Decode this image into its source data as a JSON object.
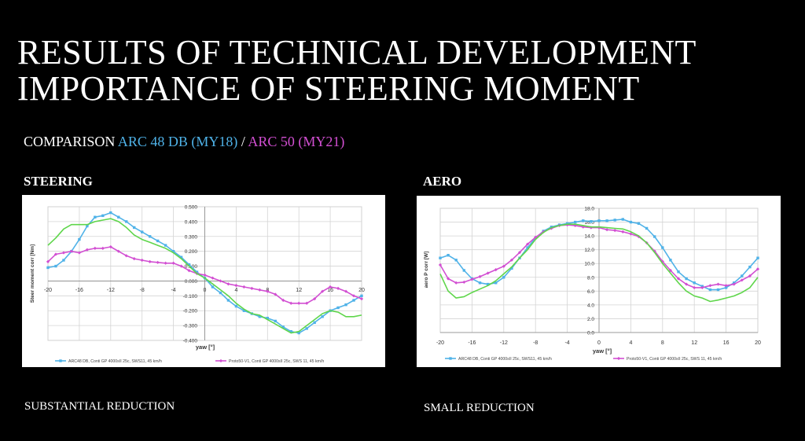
{
  "slide": {
    "title_line1": "RESULTS OF TECHNICAL DEVELOPMENT",
    "title_line2": "IMPORTANCE OF STEERING MOMENT",
    "subtitle": {
      "prefix": "COMPARISON ",
      "part1": "ARC 48 DB (MY18)",
      "sep": " / ",
      "part2": "ARC 50 (MY21)"
    },
    "colors": {
      "arc48": "#4fb2e8",
      "arc50": "#d24fd2",
      "green": "#5fd64b",
      "background": "#000000"
    }
  },
  "left": {
    "heading": "STEERING",
    "caption": "SUBSTANTIAL REDUCTION"
  },
  "right": {
    "heading": "AERO",
    "caption": "SMALL REDUCTION"
  },
  "chart_data": [
    {
      "type": "line",
      "title": "",
      "xlabel": "yaw [°]",
      "ylabel": "Steer moment corr [Nm]",
      "xlim": [
        -20,
        20
      ],
      "ylim": [
        -0.4,
        0.5
      ],
      "xticks": [
        -20,
        -16,
        -12,
        -8,
        -4,
        0,
        4,
        8,
        12,
        16,
        20
      ],
      "yticks": [
        -0.4,
        -0.3,
        -0.2,
        -0.1,
        0.0,
        0.1,
        0.2,
        0.3,
        0.4,
        0.5
      ],
      "ytick_decimals": 3,
      "grid": true,
      "legend_position": "bottom",
      "series": [
        {
          "name": "ARC48 DB, Conti GP 4000sII 25c, SWS11, 45 km/h",
          "color": "#4fb2e8",
          "marker": "square",
          "x": [
            -20,
            -19,
            -18,
            -17,
            -16,
            -15,
            -14,
            -13,
            -12,
            -11,
            -10,
            -9,
            -8,
            -7,
            -6,
            -5,
            -4,
            -3,
            -2,
            -1,
            0,
            1,
            2,
            3,
            4,
            5,
            6,
            7,
            8,
            9,
            10,
            11,
            12,
            13,
            14,
            15,
            16,
            17,
            18,
            19,
            20
          ],
          "y": [
            0.09,
            0.1,
            0.14,
            0.2,
            0.28,
            0.37,
            0.43,
            0.44,
            0.46,
            0.43,
            0.4,
            0.36,
            0.33,
            0.3,
            0.27,
            0.24,
            0.2,
            0.16,
            0.11,
            0.06,
            0.02,
            -0.04,
            -0.08,
            -0.13,
            -0.17,
            -0.2,
            -0.22,
            -0.24,
            -0.25,
            -0.27,
            -0.31,
            -0.34,
            -0.35,
            -0.32,
            -0.28,
            -0.24,
            -0.2,
            -0.18,
            -0.16,
            -0.13,
            -0.1
          ]
        },
        {
          "name": "Proto50-V1, Conti GP 4000sII 25c, SWS 11, 45 km/h",
          "color": "#d24fd2",
          "marker": "diamond",
          "x": [
            -20,
            -19,
            -18,
            -17,
            -16,
            -15,
            -14,
            -13,
            -12,
            -11,
            -10,
            -9,
            -8,
            -7,
            -6,
            -5,
            -4,
            -3,
            -2,
            -1,
            0,
            1,
            2,
            3,
            4,
            5,
            6,
            7,
            8,
            9,
            10,
            11,
            12,
            13,
            14,
            15,
            16,
            17,
            18,
            19,
            20
          ],
          "y": [
            0.13,
            0.18,
            0.19,
            0.2,
            0.19,
            0.21,
            0.22,
            0.22,
            0.23,
            0.2,
            0.17,
            0.15,
            0.14,
            0.13,
            0.125,
            0.12,
            0.12,
            0.1,
            0.07,
            0.05,
            0.04,
            0.02,
            0.0,
            -0.02,
            -0.03,
            -0.04,
            -0.05,
            -0.06,
            -0.07,
            -0.09,
            -0.13,
            -0.15,
            -0.15,
            -0.15,
            -0.12,
            -0.07,
            -0.04,
            -0.05,
            -0.07,
            -0.1,
            -0.12
          ]
        },
        {
          "name": "",
          "color": "#5fd64b",
          "marker": "none",
          "x": [
            -20,
            -19,
            -18,
            -17,
            -16,
            -15,
            -14,
            -13,
            -12,
            -11,
            -10,
            -9,
            -8,
            -7,
            -6,
            -5,
            -4,
            -3,
            -2,
            -1,
            0,
            1,
            2,
            3,
            4,
            5,
            6,
            7,
            8,
            9,
            10,
            11,
            12,
            13,
            14,
            15,
            16,
            17,
            18,
            19,
            20
          ],
          "y": [
            0.24,
            0.29,
            0.35,
            0.38,
            0.38,
            0.38,
            0.4,
            0.41,
            0.42,
            0.4,
            0.36,
            0.31,
            0.28,
            0.26,
            0.24,
            0.22,
            0.19,
            0.15,
            0.1,
            0.05,
            0.02,
            -0.02,
            -0.06,
            -0.1,
            -0.15,
            -0.19,
            -0.22,
            -0.23,
            -0.26,
            -0.29,
            -0.32,
            -0.35,
            -0.34,
            -0.3,
            -0.26,
            -0.22,
            -0.2,
            -0.21,
            -0.24,
            -0.24,
            -0.23
          ]
        }
      ]
    },
    {
      "type": "line",
      "title": "",
      "xlabel": "yaw [°]",
      "ylabel": "aero P corr [W]",
      "xlim": [
        -20,
        20
      ],
      "ylim": [
        0,
        18
      ],
      "xticks": [
        -20,
        -16,
        -12,
        -8,
        -4,
        0,
        4,
        8,
        12,
        16,
        20
      ],
      "yticks": [
        0,
        2,
        4,
        6,
        8,
        10,
        12,
        14,
        16,
        18
      ],
      "ytick_decimals": 1,
      "grid": true,
      "legend_position": "bottom",
      "series": [
        {
          "name": "ARC48 DB, Conti GP 4000sII 25c, SWS11, 45 km/h",
          "color": "#4fb2e8",
          "marker": "square",
          "x": [
            -20,
            -19,
            -18,
            -17,
            -16,
            -15,
            -14,
            -13,
            -12,
            -11,
            -10,
            -9,
            -8,
            -7,
            -6,
            -5,
            -4,
            -3,
            -2,
            -1,
            0,
            1,
            2,
            3,
            4,
            5,
            6,
            7,
            8,
            9,
            10,
            11,
            12,
            13,
            14,
            15,
            16,
            17,
            18,
            19,
            20
          ],
          "y": [
            10.8,
            11.2,
            10.5,
            9.0,
            7.8,
            7.2,
            7.0,
            7.2,
            8.0,
            9.3,
            10.8,
            12.3,
            13.7,
            14.7,
            15.3,
            15.6,
            15.8,
            16.0,
            16.2,
            16.1,
            16.2,
            16.2,
            16.3,
            16.4,
            16.0,
            15.8,
            15.1,
            13.9,
            12.3,
            10.5,
            8.8,
            7.8,
            7.2,
            6.7,
            6.2,
            6.2,
            6.5,
            7.2,
            8.2,
            9.5,
            10.8
          ]
        },
        {
          "name": "Proto50-V1, Conti GP 4000sII 25c, SWS 11, 45 km/h",
          "color": "#d24fd2",
          "marker": "diamond",
          "x": [
            -20,
            -19,
            -18,
            -17,
            -16,
            -15,
            -14,
            -13,
            -12,
            -11,
            -10,
            -9,
            -8,
            -7,
            -6,
            -5,
            -4,
            -3,
            -2,
            -1,
            0,
            1,
            2,
            3,
            4,
            5,
            6,
            7,
            8,
            9,
            10,
            11,
            12,
            13,
            14,
            15,
            16,
            17,
            18,
            19,
            20
          ],
          "y": [
            9.8,
            7.8,
            7.2,
            7.3,
            7.7,
            8.1,
            8.6,
            9.1,
            9.6,
            10.5,
            11.6,
            12.8,
            13.8,
            14.6,
            15.1,
            15.5,
            15.6,
            15.5,
            15.3,
            15.2,
            15.2,
            14.9,
            14.8,
            14.6,
            14.3,
            13.9,
            13.0,
            11.8,
            10.3,
            9.0,
            7.8,
            7.0,
            6.5,
            6.5,
            6.8,
            7.0,
            6.8,
            7.0,
            7.6,
            8.2,
            9.2
          ]
        },
        {
          "name": "",
          "color": "#5fd64b",
          "marker": "none",
          "x": [
            -20,
            -19,
            -18,
            -17,
            -16,
            -15,
            -14,
            -13,
            -12,
            -11,
            -10,
            -9,
            -8,
            -7,
            -6,
            -5,
            -4,
            -3,
            -2,
            -1,
            0,
            1,
            2,
            3,
            4,
            5,
            6,
            7,
            8,
            9,
            10,
            11,
            12,
            13,
            14,
            15,
            16,
            17,
            18,
            19,
            20
          ],
          "y": [
            8.5,
            6.0,
            5.0,
            5.2,
            5.8,
            6.3,
            6.8,
            7.5,
            8.5,
            9.5,
            10.8,
            12.0,
            13.5,
            14.5,
            15.2,
            15.5,
            15.7,
            15.7,
            15.5,
            15.3,
            15.3,
            15.2,
            15.1,
            15.0,
            14.6,
            14.0,
            13.0,
            11.6,
            10.0,
            8.6,
            7.2,
            6.0,
            5.3,
            5.0,
            4.5,
            4.7,
            5.0,
            5.3,
            5.8,
            6.5,
            8.0
          ]
        }
      ]
    }
  ]
}
